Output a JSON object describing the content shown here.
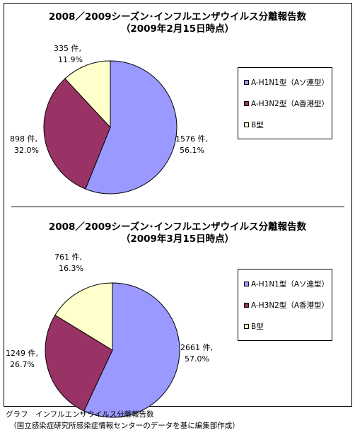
{
  "chart_data": [
    {
      "type": "pie",
      "title": "2008／2009シーズン･インフルエンザウイルス分離報告数",
      "subtitle": "（2009年2月15日時点）",
      "categories": [
        "A-H1N1型（Aソ連型）",
        "A-H3N2型（A香港型）",
        "B型"
      ],
      "values": [
        1576,
        898,
        335
      ],
      "percents": [
        "56.1%",
        "32.0%",
        "11.9%"
      ],
      "count_labels": [
        "1576 件,",
        "898 件,",
        "335 件,"
      ],
      "colors": [
        "#9999ff",
        "#993366",
        "#ffffcc"
      ],
      "legend": "right"
    },
    {
      "type": "pie",
      "title": "2008／2009シーズン･インフルエンザウイルス分離報告数",
      "subtitle": "（2009年3月15日時点）",
      "categories": [
        "A-H1N1型（Aソ連型）",
        "A-H3N2型（A香港型）",
        "B型"
      ],
      "values": [
        2661,
        1249,
        761
      ],
      "percents": [
        "57.0%",
        "26.7%",
        "16.3%"
      ],
      "count_labels": [
        "2661 件,",
        "1249 件,",
        "761 件,"
      ],
      "colors": [
        "#9999ff",
        "#993366",
        "#ffffcc"
      ],
      "legend": "right"
    }
  ],
  "caption": {
    "line1": "グラフ　インフルエンザウイルス分離報告数",
    "line2": "　（国立感染症研究所感染症情報センターのデータを基に編集部作成）"
  }
}
